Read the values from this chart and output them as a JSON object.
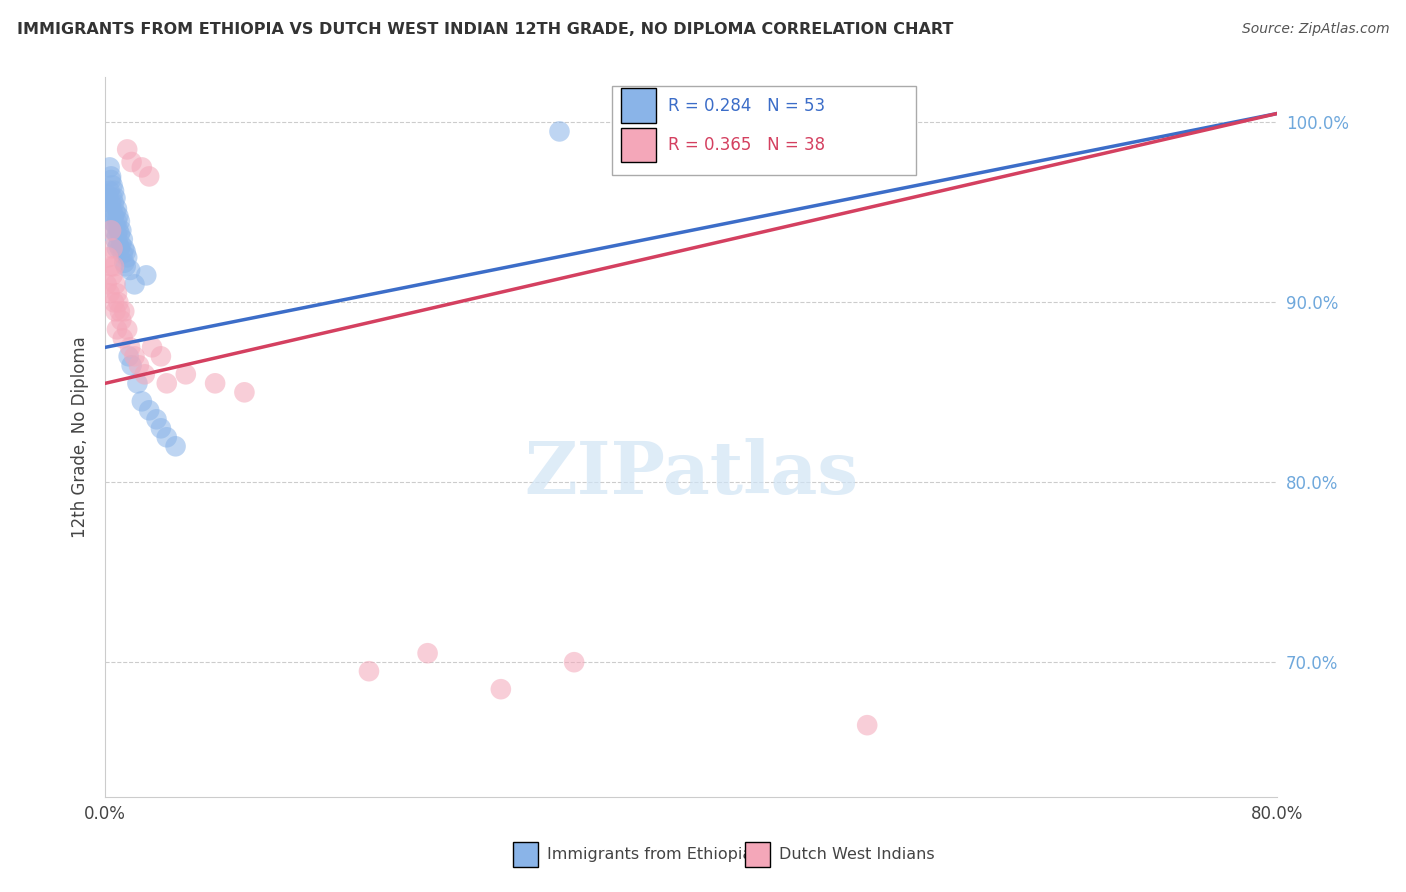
{
  "title": "IMMIGRANTS FROM ETHIOPIA VS DUTCH WEST INDIAN 12TH GRADE, NO DIPLOMA CORRELATION CHART",
  "source": "Source: ZipAtlas.com",
  "ylabel": "12th Grade, No Diploma",
  "legend_blue_label": "Immigrants from Ethiopia",
  "legend_pink_label": "Dutch West Indians",
  "r_blue": 0.284,
  "n_blue": 53,
  "r_pink": 0.365,
  "n_pink": 38,
  "blue_color": "#8ab4e8",
  "pink_color": "#f4a7b9",
  "blue_line_color": "#3c6dc8",
  "pink_line_color": "#d44060",
  "background_color": "#ffffff",
  "xlim": [
    0.0,
    0.8
  ],
  "ylim": [
    0.625,
    1.025
  ],
  "yticks": [
    0.7,
    0.8,
    0.9,
    1.0
  ],
  "ytick_labels": [
    "70.0%",
    "80.0%",
    "90.0%",
    "100.0%"
  ],
  "blue_line_x0": 0.0,
  "blue_line_y0": 0.875,
  "blue_line_x1": 0.8,
  "blue_line_y1": 1.005,
  "pink_line_x0": 0.0,
  "pink_line_y0": 0.855,
  "pink_line_x1": 0.8,
  "pink_line_y1": 1.005,
  "blue_scatter_x": [
    0.001,
    0.002,
    0.003,
    0.003,
    0.004,
    0.004,
    0.004,
    0.005,
    0.005,
    0.005,
    0.005,
    0.006,
    0.006,
    0.006,
    0.006,
    0.007,
    0.007,
    0.007,
    0.007,
    0.008,
    0.008,
    0.008,
    0.008,
    0.009,
    0.009,
    0.009,
    0.01,
    0.01,
    0.01,
    0.011,
    0.011,
    0.012,
    0.012,
    0.013,
    0.013,
    0.014,
    0.014,
    0.015,
    0.016,
    0.017,
    0.018,
    0.02,
    0.022,
    0.025,
    0.028,
    0.03,
    0.035,
    0.038,
    0.042,
    0.048,
    0.31,
    0.36,
    0.385
  ],
  "blue_scatter_y": [
    0.96,
    0.958,
    0.975,
    0.962,
    0.968,
    0.955,
    0.97,
    0.965,
    0.958,
    0.95,
    0.945,
    0.962,
    0.955,
    0.948,
    0.94,
    0.958,
    0.95,
    0.943,
    0.935,
    0.952,
    0.945,
    0.938,
    0.93,
    0.948,
    0.94,
    0.932,
    0.945,
    0.938,
    0.93,
    0.94,
    0.932,
    0.935,
    0.927,
    0.93,
    0.922,
    0.928,
    0.92,
    0.925,
    0.87,
    0.918,
    0.865,
    0.91,
    0.855,
    0.845,
    0.915,
    0.84,
    0.835,
    0.83,
    0.825,
    0.82,
    0.995,
    1.0,
    0.998
  ],
  "pink_scatter_x": [
    0.001,
    0.002,
    0.003,
    0.004,
    0.004,
    0.005,
    0.005,
    0.006,
    0.006,
    0.007,
    0.007,
    0.008,
    0.008,
    0.009,
    0.01,
    0.011,
    0.012,
    0.013,
    0.015,
    0.017,
    0.02,
    0.023,
    0.027,
    0.032,
    0.038,
    0.042,
    0.015,
    0.018,
    0.025,
    0.03,
    0.055,
    0.075,
    0.095,
    0.18,
    0.22,
    0.27,
    0.32,
    0.52
  ],
  "pink_scatter_y": [
    0.91,
    0.925,
    0.905,
    0.94,
    0.92,
    0.915,
    0.93,
    0.9,
    0.92,
    0.895,
    0.91,
    0.905,
    0.885,
    0.9,
    0.895,
    0.89,
    0.88,
    0.895,
    0.885,
    0.875,
    0.87,
    0.865,
    0.86,
    0.875,
    0.87,
    0.855,
    0.985,
    0.978,
    0.975,
    0.97,
    0.86,
    0.855,
    0.85,
    0.695,
    0.705,
    0.685,
    0.7,
    0.665
  ]
}
